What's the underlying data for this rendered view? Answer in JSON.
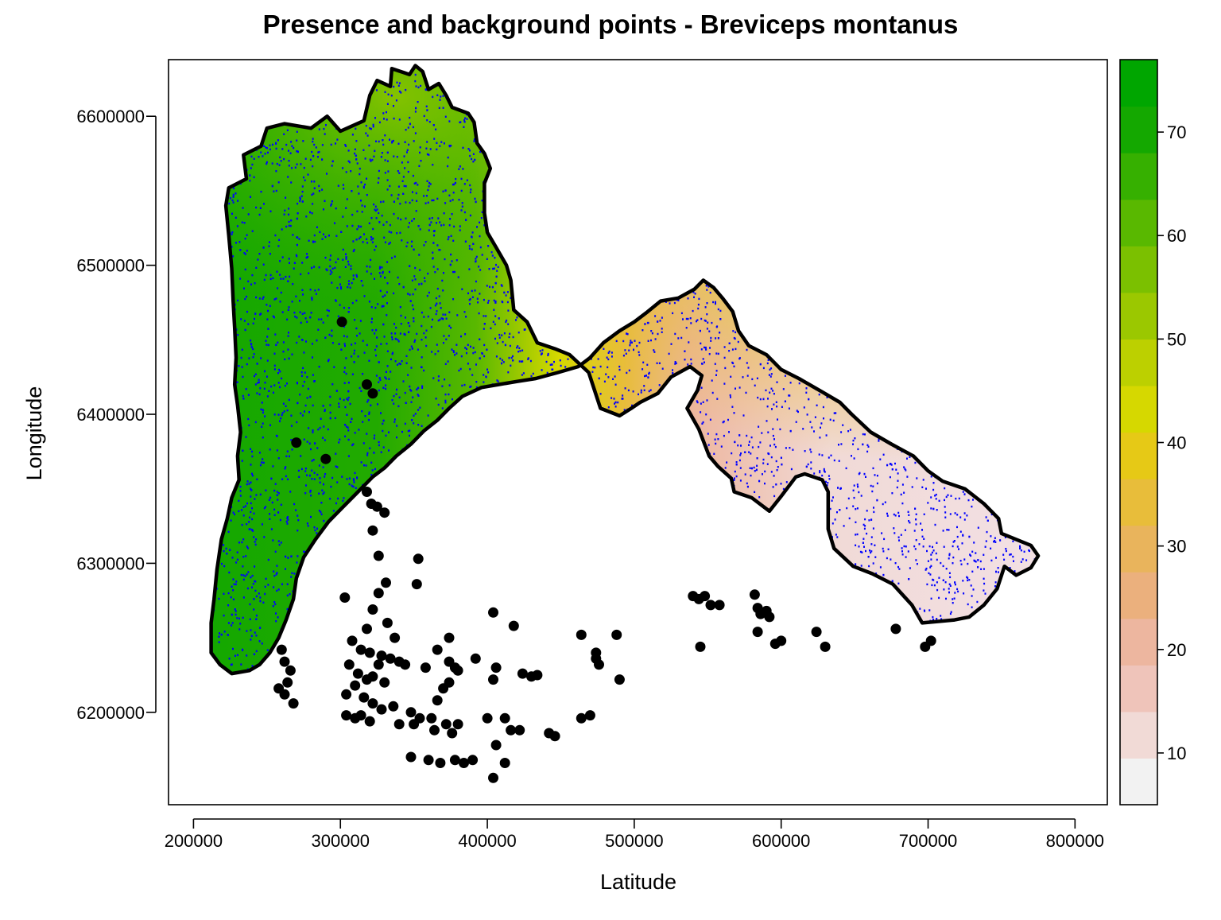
{
  "chart_data": {
    "type": "map",
    "title": "Presence and background points - Breviceps montanus",
    "xlabel": "Latitude",
    "ylabel": "Longitude",
    "xlim": [
      183000,
      822000
    ],
    "ylim": [
      6138000,
      6638000
    ],
    "x_ticks": [
      {
        "value": 200000,
        "label": "200000"
      },
      {
        "value": 300000,
        "label": "300000"
      },
      {
        "value": 400000,
        "label": "400000"
      },
      {
        "value": 500000,
        "label": "500000"
      },
      {
        "value": 600000,
        "label": "600000"
      },
      {
        "value": 700000,
        "label": "700000"
      },
      {
        "value": 800000,
        "label": "800000"
      }
    ],
    "y_ticks": [
      {
        "value": 6200000,
        "label": "6200000"
      },
      {
        "value": 6300000,
        "label": "6300000"
      },
      {
        "value": 6400000,
        "label": "6400000"
      },
      {
        "value": 6500000,
        "label": "6500000"
      },
      {
        "value": 6600000,
        "label": "6600000"
      }
    ],
    "background_points_color": "#0000ff",
    "presence_points_color": "#000000",
    "region_outline": [
      [
        224000,
        6552000
      ],
      [
        236000,
        6558000
      ],
      [
        234000,
        6574000
      ],
      [
        246000,
        6580000
      ],
      [
        250000,
        6592000
      ],
      [
        262000,
        6595000
      ],
      [
        280000,
        6592000
      ],
      [
        291000,
        6600000
      ],
      [
        300000,
        6590000
      ],
      [
        316000,
        6597000
      ],
      [
        320000,
        6614000
      ],
      [
        325000,
        6624000
      ],
      [
        334000,
        6620000
      ],
      [
        335000,
        6632000
      ],
      [
        347000,
        6628000
      ],
      [
        351000,
        6634000
      ],
      [
        356000,
        6630000
      ],
      [
        360000,
        6618000
      ],
      [
        367000,
        6622000
      ],
      [
        372000,
        6614000
      ],
      [
        376000,
        6606000
      ],
      [
        387000,
        6602000
      ],
      [
        391000,
        6596000
      ],
      [
        393000,
        6582000
      ],
      [
        398000,
        6575000
      ],
      [
        402000,
        6565000
      ],
      [
        398000,
        6555000
      ],
      [
        398000,
        6535000
      ],
      [
        400000,
        6522000
      ],
      [
        406000,
        6512000
      ],
      [
        413000,
        6500000
      ],
      [
        416000,
        6490000
      ],
      [
        418000,
        6470000
      ],
      [
        427000,
        6462000
      ],
      [
        434000,
        6448000
      ],
      [
        446000,
        6444000
      ],
      [
        456000,
        6440000
      ],
      [
        469000,
        6428000
      ],
      [
        473000,
        6416000
      ],
      [
        477000,
        6404000
      ],
      [
        490000,
        6399000
      ],
      [
        498000,
        6404000
      ],
      [
        504000,
        6408000
      ],
      [
        516000,
        6414000
      ],
      [
        525000,
        6425000
      ],
      [
        538000,
        6432000
      ],
      [
        546000,
        6426000
      ],
      [
        543000,
        6416000
      ],
      [
        536000,
        6404000
      ],
      [
        544000,
        6390000
      ],
      [
        551000,
        6372000
      ],
      [
        557000,
        6365000
      ],
      [
        566000,
        6357000
      ],
      [
        568000,
        6348000
      ],
      [
        580000,
        6344000
      ],
      [
        592000,
        6335000
      ],
      [
        600000,
        6345000
      ],
      [
        610000,
        6358000
      ],
      [
        616000,
        6360000
      ],
      [
        628000,
        6356000
      ],
      [
        632000,
        6348000
      ],
      [
        632000,
        6323000
      ],
      [
        636000,
        6310000
      ],
      [
        649000,
        6298000
      ],
      [
        662000,
        6293000
      ],
      [
        676000,
        6286000
      ],
      [
        689000,
        6272000
      ],
      [
        696000,
        6260000
      ],
      [
        718000,
        6262000
      ],
      [
        728000,
        6264000
      ],
      [
        738000,
        6272000
      ],
      [
        747000,
        6283000
      ],
      [
        752000,
        6298000
      ],
      [
        760000,
        6292000
      ],
      [
        770000,
        6297000
      ],
      [
        775000,
        6305000
      ],
      [
        770000,
        6312000
      ],
      [
        760000,
        6316000
      ],
      [
        750000,
        6320000
      ],
      [
        748000,
        6330000
      ],
      [
        738000,
        6340000
      ],
      [
        725000,
        6350000
      ],
      [
        710000,
        6355000
      ],
      [
        700000,
        6362000
      ],
      [
        690000,
        6372000
      ],
      [
        675000,
        6380000
      ],
      [
        661000,
        6388000
      ],
      [
        648000,
        6400000
      ],
      [
        640000,
        6408000
      ],
      [
        628000,
        6415000
      ],
      [
        612000,
        6424000
      ],
      [
        600000,
        6430000
      ],
      [
        590000,
        6440000
      ],
      [
        578000,
        6446000
      ],
      [
        571000,
        6456000
      ],
      [
        567000,
        6469000
      ],
      [
        560000,
        6478000
      ],
      [
        554000,
        6485000
      ],
      [
        547000,
        6490000
      ],
      [
        541000,
        6484000
      ],
      [
        530000,
        6478000
      ],
      [
        518000,
        6476000
      ],
      [
        508000,
        6468000
      ],
      [
        500000,
        6462000
      ],
      [
        490000,
        6456000
      ],
      [
        479000,
        6448000
      ],
      [
        470000,
        6438000
      ],
      [
        462000,
        6432000
      ],
      [
        448000,
        6428000
      ],
      [
        433000,
        6424000
      ],
      [
        420000,
        6422000
      ],
      [
        408000,
        6420000
      ],
      [
        396000,
        6418000
      ],
      [
        383000,
        6412000
      ],
      [
        374000,
        6404000
      ],
      [
        366000,
        6396000
      ],
      [
        357000,
        6389000
      ],
      [
        348000,
        6380000
      ],
      [
        338000,
        6372000
      ],
      [
        330000,
        6364000
      ],
      [
        322000,
        6358000
      ],
      [
        312000,
        6348000
      ],
      [
        302000,
        6338000
      ],
      [
        292000,
        6328000
      ],
      [
        283000,
        6316000
      ],
      [
        275000,
        6304000
      ],
      [
        270000,
        6290000
      ],
      [
        268000,
        6276000
      ],
      [
        263000,
        6262000
      ],
      [
        258000,
        6250000
      ],
      [
        252000,
        6240000
      ],
      [
        245000,
        6232000
      ],
      [
        238000,
        6228000
      ],
      [
        226000,
        6226000
      ],
      [
        218000,
        6232000
      ],
      [
        212000,
        6240000
      ],
      [
        212000,
        6260000
      ],
      [
        214000,
        6276000
      ],
      [
        216000,
        6296000
      ],
      [
        219000,
        6316000
      ],
      [
        223000,
        6330000
      ],
      [
        226000,
        6344000
      ],
      [
        231000,
        6356000
      ],
      [
        230000,
        6372000
      ],
      [
        232000,
        6388000
      ],
      [
        230000,
        6406000
      ],
      [
        228000,
        6420000
      ],
      [
        229000,
        6438000
      ],
      [
        228000,
        6458000
      ],
      [
        227000,
        6476000
      ],
      [
        226000,
        6498000
      ],
      [
        224000,
        6520000
      ],
      [
        222000,
        6540000
      ]
    ],
    "presence_points": [
      [
        301000,
        6462000
      ],
      [
        318000,
        6420000
      ],
      [
        322000,
        6414000
      ],
      [
        270000,
        6381000
      ],
      [
        290000,
        6370000
      ],
      [
        318000,
        6348000
      ],
      [
        321000,
        6340000
      ],
      [
        325000,
        6338000
      ],
      [
        330000,
        6334000
      ],
      [
        322000,
        6322000
      ],
      [
        326000,
        6305000
      ],
      [
        353000,
        6303000
      ],
      [
        331000,
        6287000
      ],
      [
        326000,
        6280000
      ],
      [
        352000,
        6286000
      ],
      [
        303000,
        6277000
      ],
      [
        322000,
        6269000
      ],
      [
        332000,
        6260000
      ],
      [
        318000,
        6256000
      ],
      [
        337000,
        6250000
      ],
      [
        366000,
        6242000
      ],
      [
        374000,
        6250000
      ],
      [
        404000,
        6267000
      ],
      [
        418000,
        6258000
      ],
      [
        308000,
        6248000
      ],
      [
        314000,
        6242000
      ],
      [
        320000,
        6240000
      ],
      [
        328000,
        6238000
      ],
      [
        334000,
        6236000
      ],
      [
        340000,
        6234000
      ],
      [
        344000,
        6232000
      ],
      [
        358000,
        6230000
      ],
      [
        374000,
        6234000
      ],
      [
        378000,
        6230000
      ],
      [
        306000,
        6232000
      ],
      [
        312000,
        6226000
      ],
      [
        318000,
        6222000
      ],
      [
        322000,
        6224000
      ],
      [
        326000,
        6232000
      ],
      [
        330000,
        6220000
      ],
      [
        310000,
        6218000
      ],
      [
        304000,
        6212000
      ],
      [
        316000,
        6210000
      ],
      [
        322000,
        6206000
      ],
      [
        328000,
        6202000
      ],
      [
        336000,
        6204000
      ],
      [
        348000,
        6200000
      ],
      [
        354000,
        6196000
      ],
      [
        362000,
        6196000
      ],
      [
        366000,
        6208000
      ],
      [
        370000,
        6216000
      ],
      [
        374000,
        6220000
      ],
      [
        380000,
        6228000
      ],
      [
        392000,
        6236000
      ],
      [
        406000,
        6230000
      ],
      [
        404000,
        6222000
      ],
      [
        424000,
        6226000
      ],
      [
        430000,
        6224000
      ],
      [
        434000,
        6225000
      ],
      [
        260000,
        6242000
      ],
      [
        262000,
        6234000
      ],
      [
        266000,
        6228000
      ],
      [
        264000,
        6220000
      ],
      [
        258000,
        6216000
      ],
      [
        262000,
        6212000
      ],
      [
        268000,
        6206000
      ],
      [
        304000,
        6198000
      ],
      [
        310000,
        6196000
      ],
      [
        314000,
        6198000
      ],
      [
        320000,
        6194000
      ],
      [
        340000,
        6192000
      ],
      [
        350000,
        6192000
      ],
      [
        364000,
        6188000
      ],
      [
        372000,
        6192000
      ],
      [
        376000,
        6186000
      ],
      [
        380000,
        6192000
      ],
      [
        400000,
        6196000
      ],
      [
        412000,
        6196000
      ],
      [
        416000,
        6188000
      ],
      [
        422000,
        6188000
      ],
      [
        442000,
        6186000
      ],
      [
        446000,
        6184000
      ],
      [
        464000,
        6196000
      ],
      [
        470000,
        6198000
      ],
      [
        474000,
        6236000
      ],
      [
        474000,
        6240000
      ],
      [
        476000,
        6232000
      ],
      [
        490000,
        6222000
      ],
      [
        464000,
        6252000
      ],
      [
        488000,
        6252000
      ],
      [
        540000,
        6278000
      ],
      [
        544000,
        6276000
      ],
      [
        548000,
        6278000
      ],
      [
        552000,
        6272000
      ],
      [
        558000,
        6272000
      ],
      [
        582000,
        6279000
      ],
      [
        584000,
        6270000
      ],
      [
        586000,
        6266000
      ],
      [
        590000,
        6268000
      ],
      [
        592000,
        6264000
      ],
      [
        584000,
        6254000
      ],
      [
        596000,
        6246000
      ],
      [
        600000,
        6248000
      ],
      [
        545000,
        6244000
      ],
      [
        624000,
        6254000
      ],
      [
        630000,
        6244000
      ],
      [
        678000,
        6256000
      ],
      [
        698000,
        6244000
      ],
      [
        702000,
        6248000
      ],
      [
        348000,
        6170000
      ],
      [
        360000,
        6168000
      ],
      [
        368000,
        6166000
      ],
      [
        378000,
        6168000
      ],
      [
        384000,
        6166000
      ],
      [
        390000,
        6168000
      ],
      [
        406000,
        6178000
      ],
      [
        412000,
        6166000
      ],
      [
        404000,
        6156000
      ]
    ],
    "legend": {
      "type": "color_scale",
      "min": 5,
      "max": 77,
      "ticks": [
        {
          "value": 10,
          "label": "10"
        },
        {
          "value": 20,
          "label": "20"
        },
        {
          "value": 30,
          "label": "30"
        },
        {
          "value": 40,
          "label": "40"
        },
        {
          "value": 50,
          "label": "50"
        },
        {
          "value": 60,
          "label": "60"
        },
        {
          "value": 70,
          "label": "70"
        }
      ],
      "colors": [
        "#f2f2f2",
        "#f1dad6",
        "#efc4ba",
        "#edb69f",
        "#ebb07d",
        "#e9b45c",
        "#e8bd3a",
        "#e6c916",
        "#d6d800",
        "#bcd000",
        "#9bc800",
        "#7bc000",
        "#59b800",
        "#36b000",
        "#14a800",
        "#00a600"
      ]
    }
  }
}
